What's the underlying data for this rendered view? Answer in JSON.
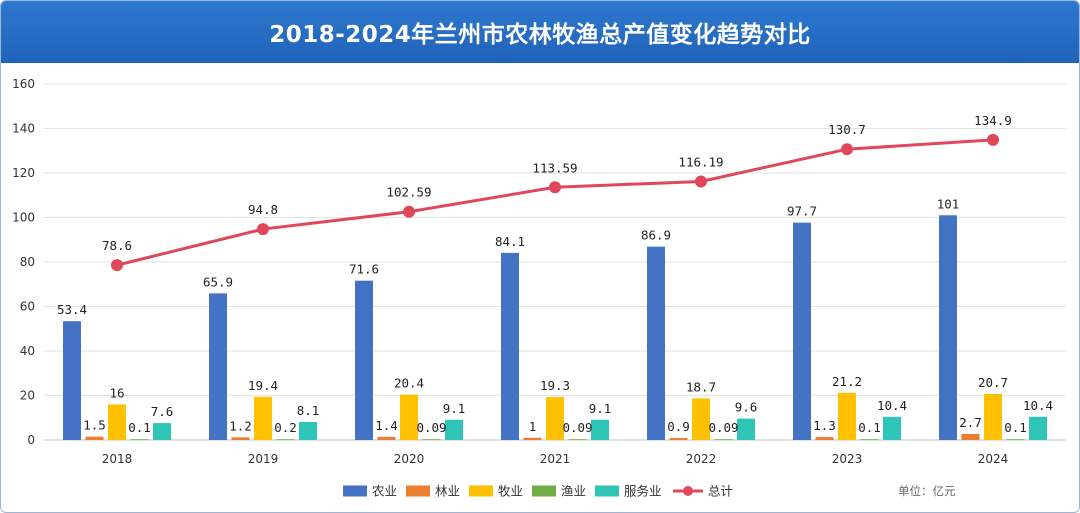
{
  "title": "2018-2024年兰州市农林牧渔总产值变化趋势对比",
  "unit": "单位：亿元",
  "chart_data": {
    "type": "bar",
    "title": "2018-2024年兰州市农林牧渔总产值变化趋势对比",
    "categories": [
      "2018",
      "2019",
      "2020",
      "2021",
      "2022",
      "2023",
      "2024"
    ],
    "ylim": [
      0,
      160
    ],
    "yticks": [
      0,
      20,
      40,
      60,
      80,
      100,
      120,
      140,
      160
    ],
    "grid": true,
    "legend_position": "bottom",
    "series": [
      {
        "name": "农业",
        "type": "bar",
        "color": "#4472c4",
        "values": [
          53.4,
          65.9,
          71.6,
          84.1,
          86.9,
          97.7,
          101
        ]
      },
      {
        "name": "林业",
        "type": "bar",
        "color": "#ed7d31",
        "values": [
          1.5,
          1.2,
          1.4,
          1,
          0.9,
          1.3,
          2.7
        ]
      },
      {
        "name": "牧业",
        "type": "bar",
        "color": "#ffc000",
        "values": [
          16,
          19.4,
          20.4,
          19.3,
          18.7,
          21.2,
          20.7
        ]
      },
      {
        "name": "渔业",
        "type": "bar",
        "color": "#70ad47",
        "values": [
          0.1,
          0.2,
          0.09,
          0.09,
          0.09,
          0.1,
          0.1
        ]
      },
      {
        "name": "服务业",
        "type": "bar",
        "color": "#2ec4b6",
        "values": [
          7.6,
          8.1,
          9.1,
          9.1,
          9.6,
          10.4,
          10.4
        ]
      },
      {
        "name": "总计",
        "type": "line",
        "color": "#e0485a",
        "values": [
          78.6,
          94.8,
          102.59,
          113.59,
          116.19,
          130.7,
          134.9
        ]
      }
    ]
  }
}
